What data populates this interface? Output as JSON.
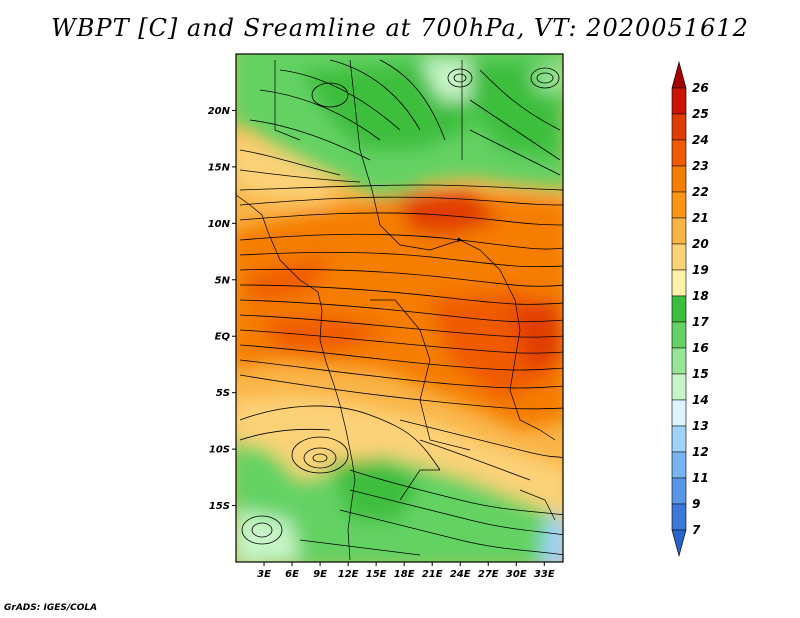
{
  "title": "WBPT [C] and Sreamline at 700hPa, VT: 2020051612",
  "footer": "GrADS: IGES/COLA",
  "map": {
    "lon_range": [
      0,
      35
    ],
    "lat_range": [
      -20,
      25
    ],
    "lat_ticks": [
      {
        "value": 20,
        "label": "20N"
      },
      {
        "value": 15,
        "label": "15N"
      },
      {
        "value": 10,
        "label": "10N"
      },
      {
        "value": 5,
        "label": "5N"
      },
      {
        "value": 0,
        "label": "EQ"
      },
      {
        "value": -5,
        "label": "5S"
      },
      {
        "value": -10,
        "label": "10S"
      },
      {
        "value": -15,
        "label": "15S"
      }
    ],
    "lon_ticks": [
      {
        "value": 3,
        "label": "3E"
      },
      {
        "value": 6,
        "label": "6E"
      },
      {
        "value": 9,
        "label": "9E"
      },
      {
        "value": 12,
        "label": "12E"
      },
      {
        "value": 15,
        "label": "15E"
      },
      {
        "value": 18,
        "label": "18E"
      },
      {
        "value": 21,
        "label": "21E"
      },
      {
        "value": 24,
        "label": "24E"
      },
      {
        "value": 27,
        "label": "27E"
      },
      {
        "value": 30,
        "label": "30E"
      },
      {
        "value": 33,
        "label": "33E"
      }
    ]
  },
  "colorbar": {
    "labels": [
      "26",
      "25",
      "24",
      "23",
      "22",
      "21",
      "20",
      "19",
      "18",
      "17",
      "16",
      "15",
      "14",
      "13",
      "12",
      "11",
      "9",
      "7"
    ],
    "colors": [
      "#a50000",
      "#c81400",
      "#e13c00",
      "#f05a00",
      "#f57d00",
      "#fa9614",
      "#fab446",
      "#fcd278",
      "#fff0aa",
      "#3cbe3c",
      "#64d264",
      "#96e696",
      "#c8f5c8",
      "#dcf5ff",
      "#a0d2fa",
      "#78b4f0",
      "#5a96e6",
      "#3c78d8",
      "#2864c8"
    ]
  }
}
